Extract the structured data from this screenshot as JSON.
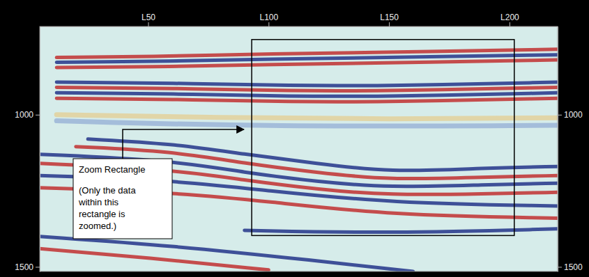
{
  "chart_data": {
    "type": "seismic_section",
    "xlim": [
      5,
      220
    ],
    "xticks": [
      {
        "value": 50,
        "label": "L50"
      },
      {
        "value": 100,
        "label": "L100"
      },
      {
        "value": 150,
        "label": "L150"
      },
      {
        "value": 200,
        "label": "L200"
      }
    ],
    "ylim": [
      710,
      1515
    ],
    "yticks": [
      1000,
      1500
    ],
    "tick_labels": true,
    "series": [
      {
        "color": "#c23b3b",
        "x": [
          12,
          60,
          100,
          150,
          220
        ],
        "values": [
          812,
          808,
          800,
          795,
          785
        ]
      },
      {
        "color": "#2d3f8f",
        "x": [
          12,
          60,
          100,
          150,
          220
        ],
        "values": [
          828,
          824,
          817,
          812,
          803
        ]
      },
      {
        "color": "#c23b3b",
        "x": [
          12,
          60,
          100,
          150,
          220
        ],
        "values": [
          845,
          842,
          835,
          830,
          820
        ]
      },
      {
        "color": "#2d3f8f",
        "x": [
          12,
          60,
          110,
          150,
          220
        ],
        "values": [
          893,
          896,
          905,
          905,
          893
        ]
      },
      {
        "color": "#c23b3b",
        "x": [
          12,
          60,
          110,
          150,
          220
        ],
        "values": [
          910,
          913,
          922,
          922,
          910
        ]
      },
      {
        "color": "#2d3f8f",
        "x": [
          12,
          60,
          110,
          150,
          220
        ],
        "values": [
          928,
          931,
          940,
          940,
          928
        ]
      },
      {
        "color": "#c23b3b",
        "x": [
          12,
          60,
          110,
          150,
          220
        ],
        "values": [
          946,
          949,
          958,
          958,
          946
        ]
      },
      {
        "color": "#e2d3a0",
        "x": [
          12,
          80,
          150,
          220
        ],
        "values": [
          1000,
          1010,
          1015,
          1010
        ]
      },
      {
        "color": "#9fb8d8",
        "x": [
          12,
          100,
          220
        ],
        "values": [
          1020,
          1040,
          1035
        ]
      },
      {
        "color": "#2d3f8f",
        "x": [
          25,
          60,
          90,
          120,
          150,
          190,
          220
        ],
        "values": [
          1080,
          1095,
          1130,
          1160,
          1190,
          1175,
          1170
        ]
      },
      {
        "color": "#c23b3b",
        "x": [
          20,
          60,
          90,
          120,
          150,
          190,
          220
        ],
        "values": [
          1105,
          1120,
          1160,
          1190,
          1215,
          1205,
          1200
        ]
      },
      {
        "color": "#2d3f8f",
        "x": [
          5,
          60,
          90,
          120,
          150,
          190,
          220
        ],
        "values": [
          1130,
          1150,
          1190,
          1220,
          1240,
          1230,
          1225
        ]
      },
      {
        "color": "#c23b3b",
        "x": [
          5,
          60,
          90,
          120,
          150,
          190,
          220
        ],
        "values": [
          1160,
          1180,
          1215,
          1245,
          1265,
          1260,
          1255
        ]
      },
      {
        "color": "#2d3f8f",
        "x": [
          5,
          60,
          100,
          150,
          220
        ],
        "values": [
          1200,
          1215,
          1250,
          1290,
          1300
        ]
      },
      {
        "color": "#c23b3b",
        "x": [
          5,
          60,
          100,
          150,
          220
        ],
        "values": [
          1240,
          1255,
          1285,
          1330,
          1340
        ]
      },
      {
        "color": "#2d3f8f",
        "x": [
          90,
          150,
          220
        ],
        "values": [
          1380,
          1390,
          1375
        ]
      },
      {
        "color": "#2d3f8f",
        "x": [
          5,
          60,
          120,
          160
        ],
        "values": [
          1400,
          1430,
          1480,
          1515
        ]
      },
      {
        "color": "#c23b3b",
        "x": [
          5,
          50,
          100
        ],
        "values": [
          1440,
          1470,
          1510
        ]
      }
    ],
    "zoom_rectangle": {
      "x": [
        93,
        202
      ],
      "y": [
        753,
        1397
      ]
    },
    "annotation": {
      "title": "Zoom Rectangle",
      "lines": [
        "(Only the data",
        "within this",
        "rectangle is",
        "zoomed.)"
      ]
    }
  }
}
